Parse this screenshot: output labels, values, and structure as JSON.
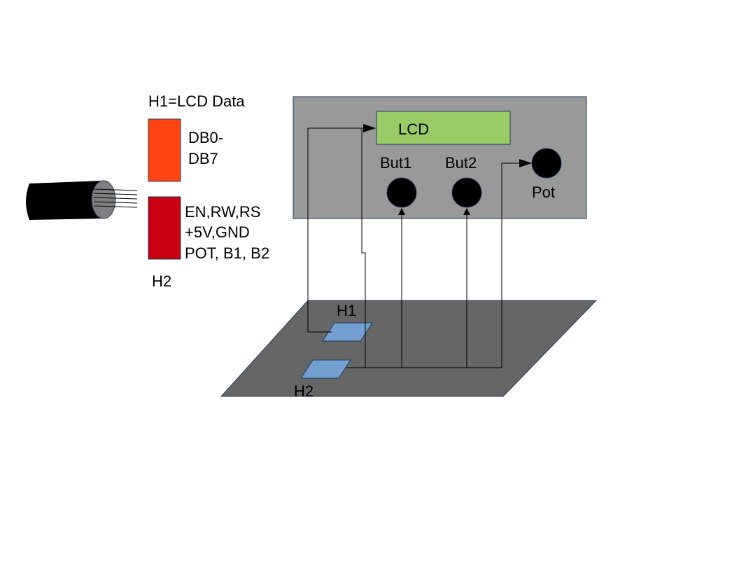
{
  "legend": {
    "title": "H1=LCD Data",
    "h1_desc_line1": "DB0-",
    "h1_desc_line2": "DB7",
    "h2_desc_line1": "EN,RW,RS",
    "h2_desc_line2": "+5V,GND",
    "h2_desc_line3": "POT, B1, B2",
    "h2_label": "H2"
  },
  "panel": {
    "lcd_label": "LCD",
    "but1_label": "But1",
    "but2_label": "But2",
    "pot_label": "Pot"
  },
  "board": {
    "h1_label": "H1",
    "h2_label": "H2"
  },
  "colors": {
    "h1_block": "#ff4411",
    "h2_block": "#c9000f",
    "panel": "#999999",
    "lcd": "#99cc66",
    "board": "#666666",
    "header_pad": "#729fcf",
    "cable": "#000000"
  },
  "icons": {
    "cable": "ribbon-cable-icon"
  }
}
